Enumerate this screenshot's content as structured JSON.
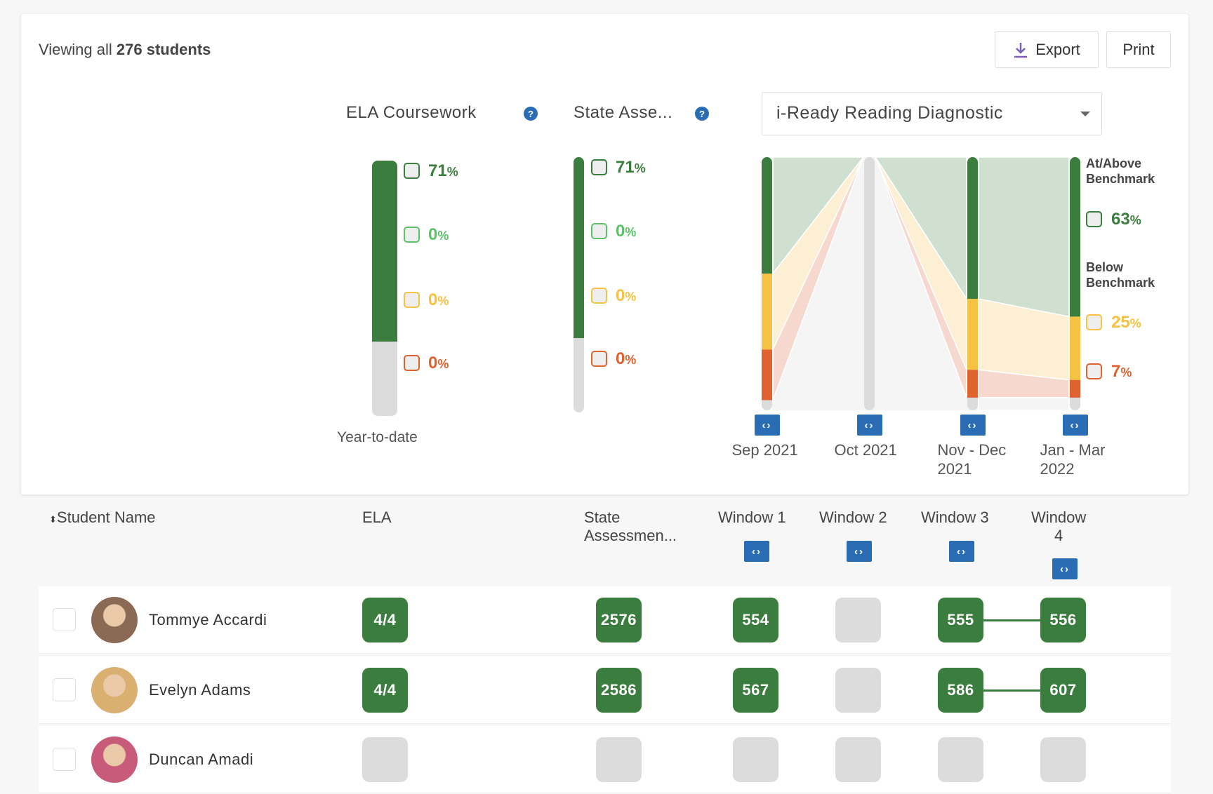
{
  "header": {
    "viewing_prefix": "Viewing all",
    "viewing_count": "276 students",
    "export_label": "Export",
    "print_label": "Print"
  },
  "summary": {
    "ela": {
      "title": "ELA Coursework",
      "help": "?",
      "footer": "Year-to-date",
      "fill_pct": 71,
      "levels": [
        {
          "pct": "71",
          "color": "#3b7d3e"
        },
        {
          "pct": "0",
          "color": "#5cc26a"
        },
        {
          "pct": "0",
          "color": "#f5c244"
        },
        {
          "pct": "0",
          "color": "#e0622f"
        }
      ]
    },
    "state": {
      "title": "State Asse...",
      "help": "?",
      "fill_pct": 71,
      "levels": [
        {
          "pct": "71",
          "color": "#3b7d3e"
        },
        {
          "pct": "0",
          "color": "#5cc26a"
        },
        {
          "pct": "0",
          "color": "#f5c244"
        },
        {
          "pct": "0",
          "color": "#e0622f"
        }
      ]
    },
    "diagnostic": {
      "selected": "i-Ready Reading Diagnostic",
      "legend": {
        "above": "At/Above Benchmark",
        "below": "Below Benchmark",
        "items": [
          {
            "pct": "63",
            "color": "#3b7d3e"
          },
          {
            "pct": "25",
            "color": "#f5c244"
          },
          {
            "pct": "7",
            "color": "#e0622f"
          }
        ]
      }
    }
  },
  "chart_data": {
    "type": "sankey",
    "categories": [
      "Sep 2021",
      "Oct 2021",
      "Nov - Dec 2021",
      "Jan - Mar 2022"
    ],
    "category_lines": [
      [
        "Sep 2021",
        ""
      ],
      [
        "Oct 2021",
        ""
      ],
      [
        "Nov - Dec",
        "2021"
      ],
      [
        "Jan - Mar",
        "2022"
      ]
    ],
    "series": [
      {
        "key": "at_above",
        "color": "#3b7d3e",
        "flow_color": "#cfe0d1",
        "values": [
          46,
          0,
          56,
          63
        ]
      },
      {
        "key": "below_yellow",
        "color": "#f5c244",
        "flow_color": "#fcefd3",
        "values": [
          30,
          0,
          28,
          25
        ]
      },
      {
        "key": "below_red",
        "color": "#e0622f",
        "flow_color": "#f6d8cf",
        "values": [
          20,
          0,
          11,
          7
        ]
      },
      {
        "key": "no_data",
        "color": "#dcdcdc",
        "flow_color": "#f5f5f5",
        "values": [
          4,
          100,
          5,
          5
        ]
      }
    ]
  },
  "table": {
    "columns": {
      "name": "Student Name",
      "ela": "ELA",
      "state": "State Assessmen...",
      "w1": "Window 1",
      "w2": "Window 2",
      "w3": "Window 3",
      "w4a": "Window",
      "w4b": "4"
    },
    "rows": [
      {
        "name": "Tommye Accardi",
        "ela": "4/4",
        "state": "2576",
        "w1": "554",
        "w2": "",
        "w3": "555",
        "w4": "556",
        "avatar": "#8a6a55"
      },
      {
        "name": "Evelyn Adams",
        "ela": "4/4",
        "state": "2586",
        "w1": "567",
        "w2": "",
        "w3": "586",
        "w4": "607",
        "avatar": "#d9b070"
      },
      {
        "name": "Duncan Amadi",
        "ela": "",
        "state": "",
        "w1": "",
        "w2": "",
        "w3": "",
        "w4": "",
        "avatar": "#c85a7a"
      }
    ]
  }
}
